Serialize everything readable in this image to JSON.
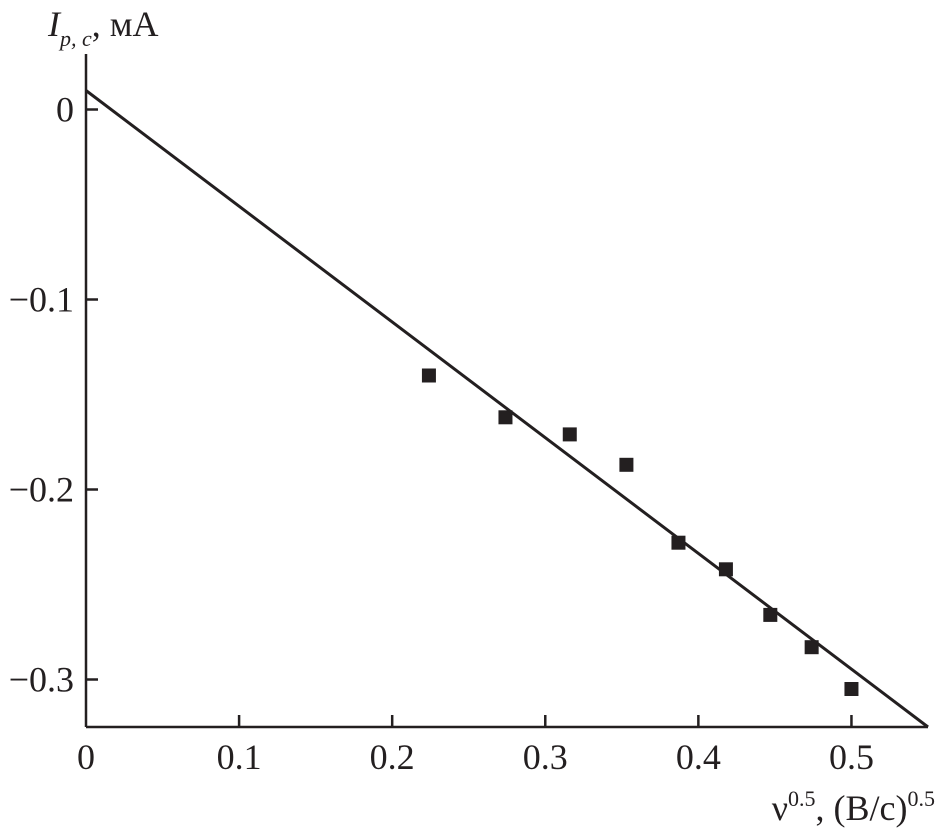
{
  "chart_data": {
    "type": "scatter",
    "title": "",
    "xlabel": {
      "base": "ν",
      "sup": "0.5",
      "rest": ", (В/с)",
      "sup2": "0.5"
    },
    "ylabel": {
      "base": "I",
      "sub": "p, c",
      "rest": ", мА"
    },
    "xlim": [
      0,
      0.55
    ],
    "ylim": [
      -0.325,
      0.045
    ],
    "xticks": [
      0,
      0.1,
      0.2,
      0.3,
      0.4,
      0.5
    ],
    "xtick_labels": [
      "0",
      "0.1",
      "0.2",
      "0.3",
      "0.4",
      "0.5"
    ],
    "yticks": [
      0,
      -0.1,
      -0.2,
      -0.3
    ],
    "ytick_labels": [
      "0",
      "−0.1",
      "−0.2",
      "−0.3"
    ],
    "grid": false,
    "series": [
      {
        "type": "scatter",
        "marker": "square",
        "color": "#231f20",
        "x": [
          0.224,
          0.274,
          0.316,
          0.353,
          0.387,
          0.418,
          0.447,
          0.474,
          0.5
        ],
        "y": [
          -0.14,
          -0.162,
          -0.171,
          -0.187,
          -0.228,
          -0.242,
          -0.266,
          -0.283,
          -0.305
        ]
      },
      {
        "type": "line",
        "color": "#231f20",
        "x": [
          0,
          0.55
        ],
        "y": [
          0.01,
          -0.325
        ]
      }
    ]
  }
}
